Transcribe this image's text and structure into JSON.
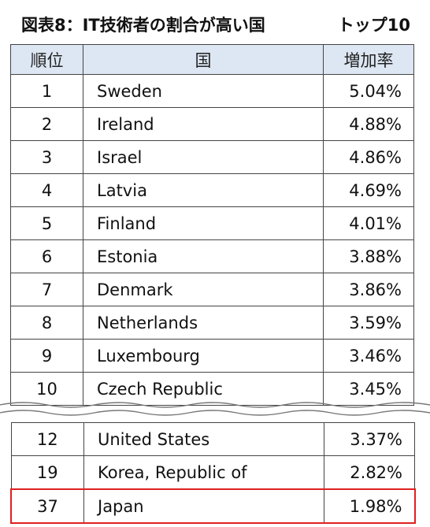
{
  "title": {
    "main": "図表8：IT技術者の割合が高い国",
    "suffix": "トップ10"
  },
  "table": {
    "headers": {
      "rank": "順位",
      "country": "国",
      "rate": "増加率"
    },
    "top_rows": [
      {
        "rank": "1",
        "country": "Sweden",
        "rate": "5.04%"
      },
      {
        "rank": "2",
        "country": "Ireland",
        "rate": "4.88%"
      },
      {
        "rank": "3",
        "country": "Israel",
        "rate": "4.86%"
      },
      {
        "rank": "4",
        "country": "Latvia",
        "rate": "4.69%"
      },
      {
        "rank": "5",
        "country": "Finland",
        "rate": "4.01%"
      },
      {
        "rank": "6",
        "country": "Estonia",
        "rate": "3.88%"
      },
      {
        "rank": "7",
        "country": "Denmark",
        "rate": "3.86%"
      },
      {
        "rank": "8",
        "country": "Netherlands",
        "rate": "3.59%"
      },
      {
        "rank": "9",
        "country": "Luxembourg",
        "rate": "3.46%"
      },
      {
        "rank": "10",
        "country": "Czech Republic",
        "rate": "3.45%"
      }
    ],
    "bottom_rows": [
      {
        "rank": "12",
        "country": "United States",
        "rate": "3.37%"
      },
      {
        "rank": "19",
        "country": "Korea, Republic of",
        "rate": "2.82%"
      },
      {
        "rank": "37",
        "country": "Japan",
        "rate": "1.98%",
        "highlight": true
      }
    ]
  },
  "colors": {
    "header_bg": "#dde7f3",
    "highlight_border": "#e02020"
  }
}
